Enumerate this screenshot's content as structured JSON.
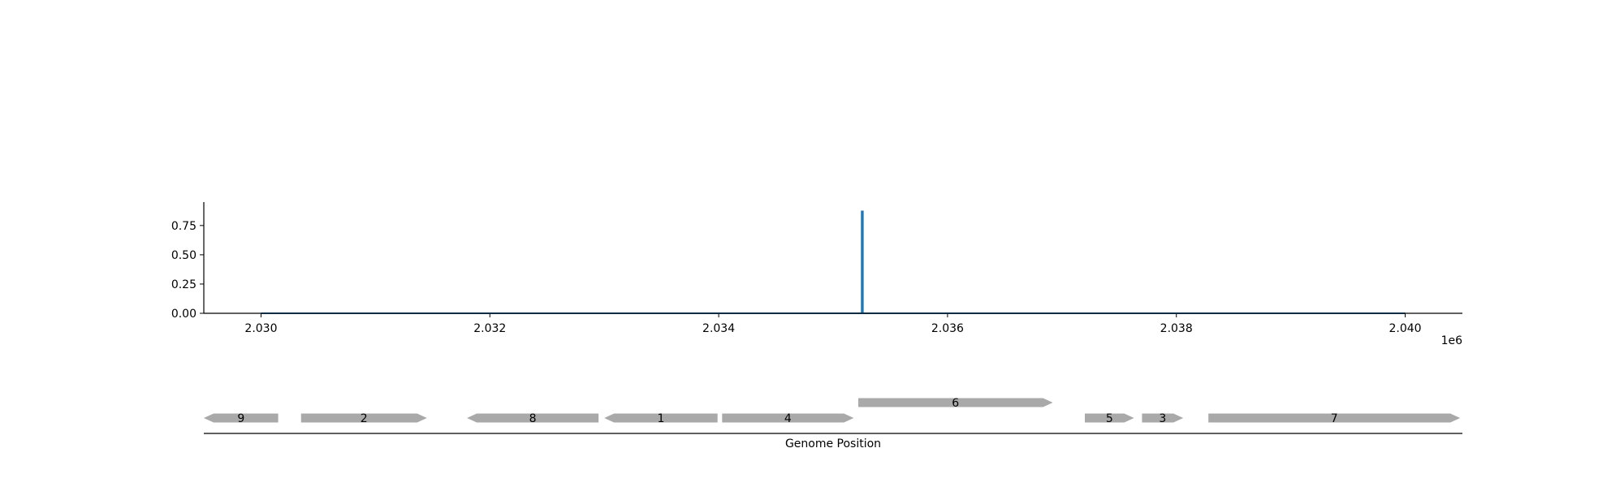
{
  "chart_data": [
    {
      "type": "line",
      "x": [
        2030000,
        2035250,
        2035250,
        2035260,
        2035260,
        2040000
      ],
      "y": [
        0,
        0,
        0.87,
        0.87,
        0,
        0
      ],
      "xlim": [
        2029500,
        2040500
      ],
      "ylim": [
        0,
        0.95
      ],
      "x_ticks": [
        2030000,
        2032000,
        2034000,
        2036000,
        2038000,
        2040000
      ],
      "x_tick_labels": [
        "2.030",
        "2.032",
        "2.034",
        "2.036",
        "2.038",
        "2.040"
      ],
      "x_offset_label": "1e6",
      "y_ticks": [
        0,
        0.25,
        0.5,
        0.75
      ],
      "y_tick_labels": [
        "0.00",
        "0.25",
        "0.50",
        "0.75"
      ],
      "line_color": "#1f77b4",
      "grid": false,
      "title": "",
      "xlabel": "",
      "ylabel": ""
    },
    {
      "type": "gene-track",
      "xlim": [
        2029500,
        2040500
      ],
      "xlabel": "Genome Position",
      "feature_color": "#a9a9a9",
      "features": [
        {
          "label": "9",
          "start": 2029500,
          "end": 2030150,
          "strand": "-",
          "level": 0
        },
        {
          "label": "2",
          "start": 2030350,
          "end": 2031450,
          "strand": "+",
          "level": 0
        },
        {
          "label": "8",
          "start": 2031800,
          "end": 2032950,
          "strand": "-",
          "level": 0
        },
        {
          "label": "1",
          "start": 2033000,
          "end": 2033990,
          "strand": "-",
          "level": 0
        },
        {
          "label": "4",
          "start": 2034030,
          "end": 2035180,
          "strand": "+",
          "level": 0
        },
        {
          "label": "6",
          "start": 2035220,
          "end": 2036920,
          "strand": "+",
          "level": 1
        },
        {
          "label": "5",
          "start": 2037200,
          "end": 2037630,
          "strand": "+",
          "level": 0
        },
        {
          "label": "3",
          "start": 2037700,
          "end": 2038060,
          "strand": "+",
          "level": 0
        },
        {
          "label": "7",
          "start": 2038280,
          "end": 2040480,
          "strand": "+",
          "level": 0
        }
      ]
    }
  ]
}
